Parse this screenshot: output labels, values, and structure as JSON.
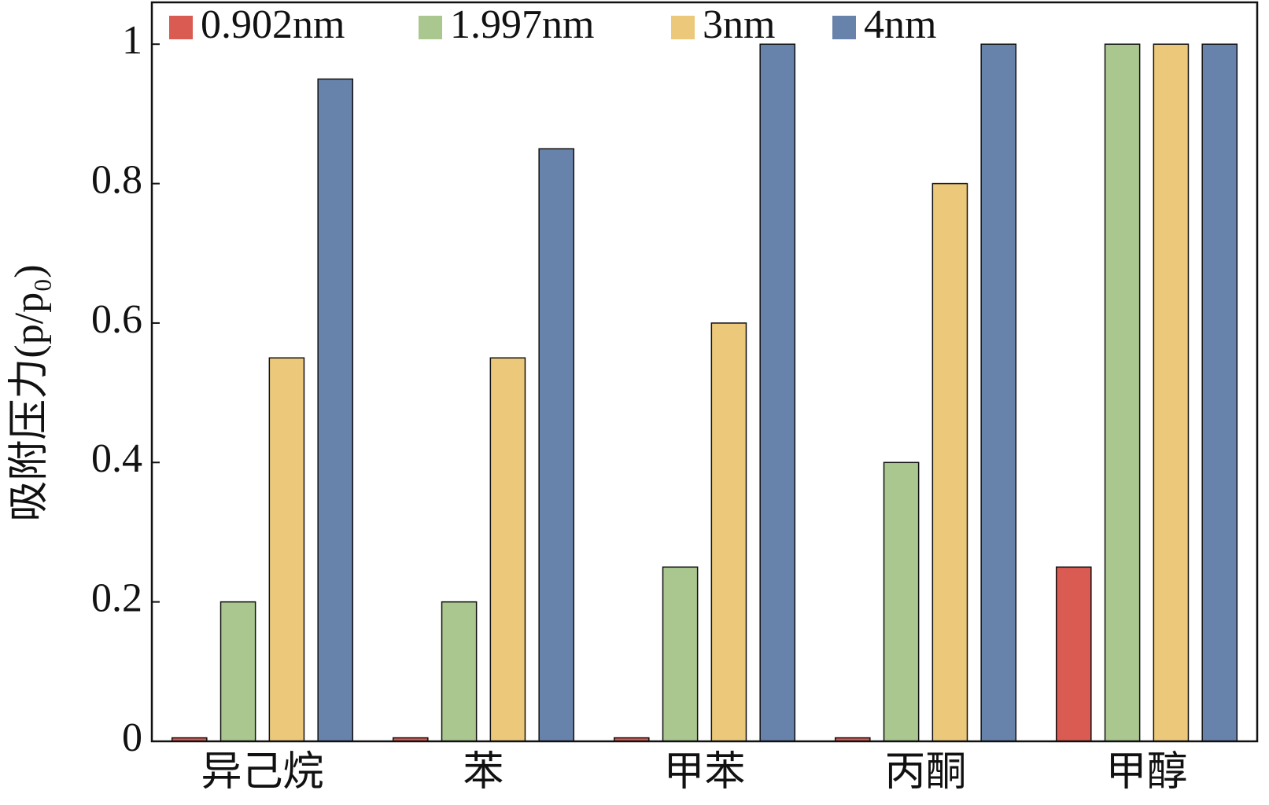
{
  "chart_data": {
    "type": "bar",
    "y_label": "吸附压力(p/p₀)",
    "categories": [
      "异己烷",
      "苯",
      "甲苯",
      "丙酮",
      "甲醇"
    ],
    "series": [
      {
        "name": "0.902nm",
        "color": "#d95b52",
        "values": [
          0.005,
          0.005,
          0.005,
          0.005,
          0.25
        ]
      },
      {
        "name": "1.997nm",
        "color": "#a9c78f",
        "values": [
          0.2,
          0.2,
          0.25,
          0.4,
          1.0
        ]
      },
      {
        "name": "3nm",
        "color": "#ecc97a",
        "values": [
          0.55,
          0.55,
          0.6,
          0.8,
          1.0
        ]
      },
      {
        "name": "4nm",
        "color": "#6883ab",
        "values": [
          0.95,
          0.85,
          1.0,
          1.0,
          1.0
        ]
      }
    ],
    "ylim": [
      0,
      1.06
    ],
    "yticks": [
      0,
      0.2,
      0.4,
      0.6,
      0.8,
      1
    ],
    "grid": false,
    "legend": "top"
  }
}
